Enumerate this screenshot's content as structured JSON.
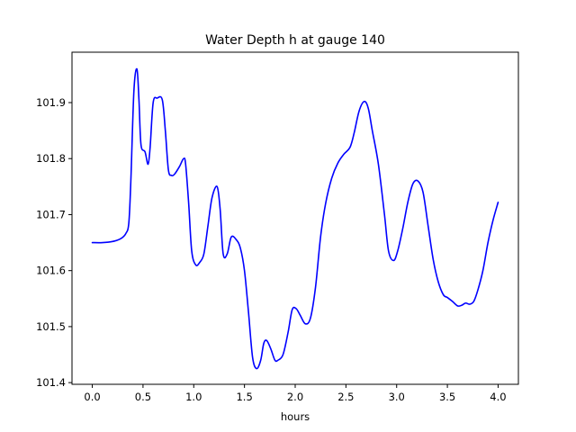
{
  "chart_data": {
    "type": "line",
    "title": "Water Depth h at gauge 140",
    "xlabel": "hours",
    "ylabel": "",
    "xlim": [
      -0.2,
      4.2
    ],
    "ylim": [
      101.397,
      101.99
    ],
    "xticks": [
      0.0,
      0.5,
      1.0,
      1.5,
      2.0,
      2.5,
      3.0,
      3.5,
      4.0
    ],
    "xtick_labels": [
      "0.0",
      "0.5",
      "1.0",
      "1.5",
      "2.0",
      "2.5",
      "3.0",
      "3.5",
      "4.0"
    ],
    "yticks": [
      101.4,
      101.5,
      101.6,
      101.7,
      101.8,
      101.9
    ],
    "ytick_labels": [
      "101.4",
      "101.5",
      "101.6",
      "101.7",
      "101.8",
      "101.9"
    ],
    "grid": false,
    "series": [
      {
        "color": "#0000ff",
        "x": [
          0.0,
          0.1,
          0.2,
          0.28,
          0.33,
          0.36,
          0.38,
          0.41,
          0.44,
          0.46,
          0.48,
          0.52,
          0.55,
          0.57,
          0.6,
          0.64,
          0.69,
          0.72,
          0.75,
          0.78,
          0.81,
          0.86,
          0.9,
          0.92,
          0.95,
          0.98,
          1.02,
          1.06,
          1.1,
          1.14,
          1.18,
          1.23,
          1.26,
          1.29,
          1.33,
          1.37,
          1.42,
          1.46,
          1.5,
          1.54,
          1.58,
          1.62,
          1.66,
          1.69,
          1.72,
          1.76,
          1.8,
          1.83,
          1.88,
          1.93,
          1.97,
          2.01,
          2.05,
          2.1,
          2.15,
          2.2,
          2.25,
          2.3,
          2.36,
          2.42,
          2.48,
          2.54,
          2.58,
          2.63,
          2.68,
          2.72,
          2.76,
          2.82,
          2.88,
          2.92,
          2.97,
          3.01,
          3.06,
          3.11,
          3.16,
          3.21,
          3.26,
          3.31,
          3.36,
          3.41,
          3.46,
          3.5,
          3.55,
          3.6,
          3.64,
          3.68,
          3.72,
          3.76,
          3.8,
          3.85,
          3.9,
          3.95,
          4.0
        ],
        "y": [
          101.65,
          101.65,
          101.652,
          101.657,
          101.666,
          101.685,
          101.76,
          101.92,
          101.96,
          101.905,
          101.825,
          101.812,
          101.79,
          101.82,
          101.9,
          101.908,
          101.905,
          101.85,
          101.78,
          101.77,
          101.772,
          101.786,
          101.8,
          101.79,
          101.72,
          101.635,
          101.61,
          101.615,
          101.63,
          101.68,
          101.73,
          101.75,
          101.71,
          101.63,
          101.63,
          101.66,
          101.655,
          101.64,
          101.6,
          101.525,
          101.445,
          101.425,
          101.44,
          101.47,
          101.475,
          101.46,
          101.44,
          101.44,
          101.45,
          101.49,
          101.53,
          101.532,
          101.52,
          101.505,
          101.515,
          101.57,
          101.66,
          101.72,
          101.765,
          101.792,
          101.808,
          101.82,
          101.845,
          101.885,
          101.902,
          101.89,
          101.85,
          101.79,
          101.7,
          101.635,
          101.618,
          101.635,
          101.675,
          101.722,
          101.755,
          101.76,
          101.74,
          101.68,
          101.62,
          101.58,
          101.557,
          101.552,
          101.545,
          101.537,
          101.538,
          101.542,
          101.54,
          101.545,
          101.565,
          101.6,
          101.65,
          101.69,
          101.722
        ]
      }
    ]
  }
}
